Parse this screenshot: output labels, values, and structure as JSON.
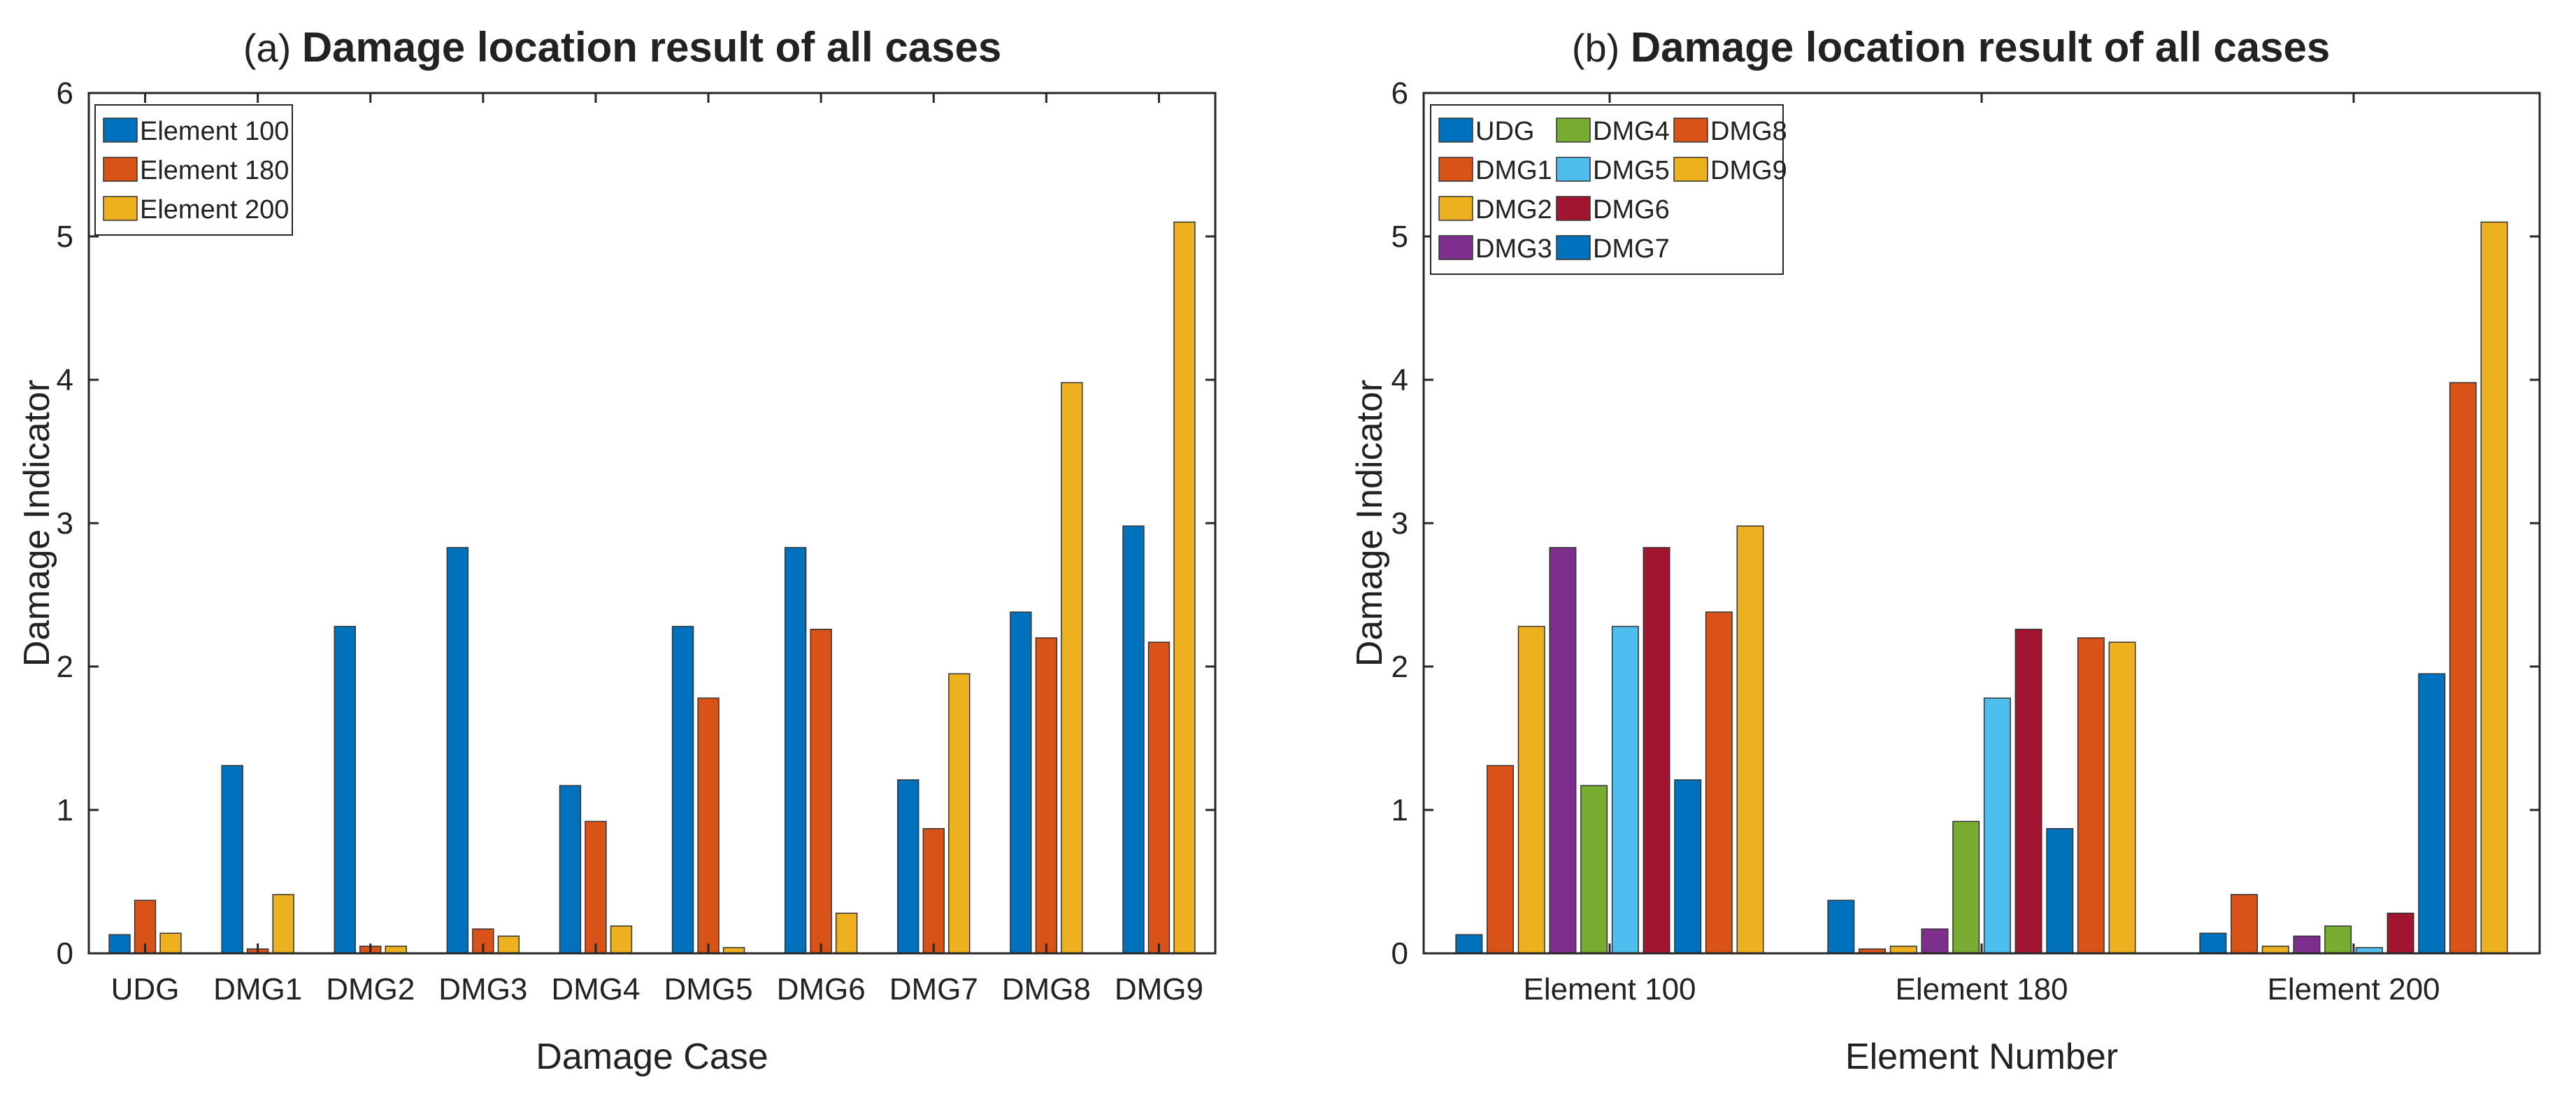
{
  "chart_data": [
    {
      "id": "a",
      "type": "bar",
      "panel_label": "(a)",
      "title": "Damage location result of all cases",
      "xlabel": "Damage Case",
      "ylabel": "Damage Indicator",
      "ylim": [
        0,
        6
      ],
      "yticks": [
        0,
        1,
        2,
        3,
        4,
        5,
        6
      ],
      "grid": false,
      "legend_position": "top-left",
      "legend_columns": 1,
      "categories": [
        "UDG",
        "DMG1",
        "DMG2",
        "DMG3",
        "DMG4",
        "DMG5",
        "DMG6",
        "DMG7",
        "DMG8",
        "DMG9"
      ],
      "series": [
        {
          "name": "Element 100",
          "color": "#0072BD",
          "values": [
            0.13,
            1.31,
            2.28,
            2.83,
            1.17,
            2.28,
            2.83,
            1.21,
            2.38,
            2.98
          ]
        },
        {
          "name": "Element 180",
          "color": "#D95319",
          "values": [
            0.37,
            0.03,
            0.05,
            0.17,
            0.92,
            1.78,
            2.26,
            0.87,
            2.2,
            2.17
          ]
        },
        {
          "name": "Element 200",
          "color": "#EDB120",
          "values": [
            0.14,
            0.41,
            0.05,
            0.12,
            0.19,
            0.04,
            0.28,
            1.95,
            3.98,
            5.1
          ]
        }
      ]
    },
    {
      "id": "b",
      "type": "bar",
      "panel_label": "(b)",
      "title": "Damage location result of all cases",
      "xlabel": "Element Number",
      "ylabel": "Damage Indicator",
      "ylim": [
        0,
        6
      ],
      "yticks": [
        0,
        1,
        2,
        3,
        4,
        5,
        6
      ],
      "grid": false,
      "legend_position": "top-left",
      "legend_columns": 3,
      "categories": [
        "Element 100",
        "Element 180",
        "Element 200"
      ],
      "series": [
        {
          "name": "UDG",
          "color": "#0072BD",
          "values": [
            0.13,
            0.37,
            0.14
          ]
        },
        {
          "name": "DMG1",
          "color": "#D95319",
          "values": [
            1.31,
            0.03,
            0.41
          ]
        },
        {
          "name": "DMG2",
          "color": "#EDB120",
          "values": [
            2.28,
            0.05,
            0.05
          ]
        },
        {
          "name": "DMG3",
          "color": "#7E2F8E",
          "values": [
            2.83,
            0.17,
            0.12
          ]
        },
        {
          "name": "DMG4",
          "color": "#77AC30",
          "values": [
            1.17,
            0.92,
            0.19
          ]
        },
        {
          "name": "DMG5",
          "color": "#4DBEEE",
          "values": [
            2.28,
            1.78,
            0.04
          ]
        },
        {
          "name": "DMG6",
          "color": "#A2142F",
          "values": [
            2.83,
            2.26,
            0.28
          ]
        },
        {
          "name": "DMG7",
          "color": "#0072BD",
          "values": [
            1.21,
            0.87,
            1.95
          ]
        },
        {
          "name": "DMG8",
          "color": "#D95319",
          "values": [
            2.38,
            2.2,
            3.98
          ]
        },
        {
          "name": "DMG9",
          "color": "#EDB120",
          "values": [
            2.98,
            2.17,
            5.1
          ]
        }
      ]
    }
  ]
}
